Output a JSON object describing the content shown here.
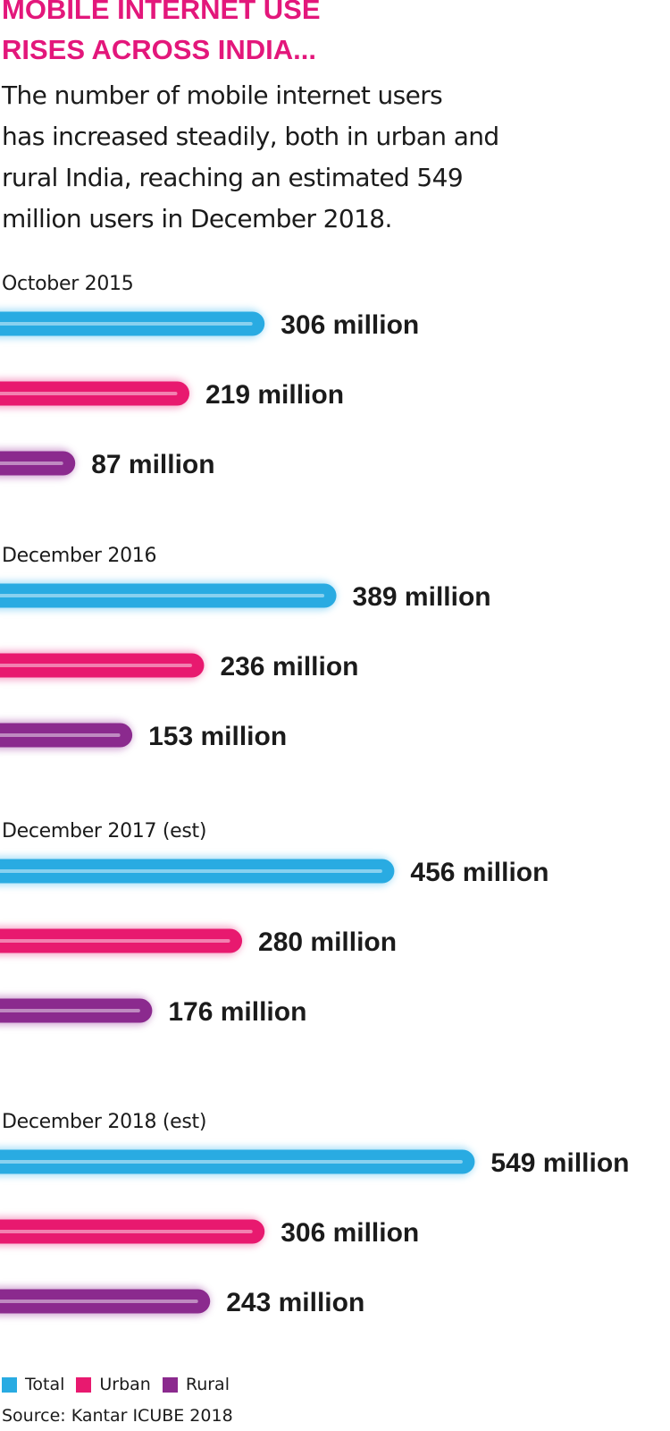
{
  "title_lines": [
    "Mobile internet use",
    "rises across India..."
  ],
  "subtitle_lines": [
    "The number of mobile internet users",
    "has increased steadily, both in urban and",
    "rural India, reaching an estimated 549",
    "million users in December 2018."
  ],
  "source": "Source: Kantar ICUBE 2018",
  "chart_data": {
    "type": "bar",
    "orientation": "horizontal",
    "unit": "million",
    "groups": [
      {
        "label": "October 2015",
        "values": [
          306,
          219,
          87
        ],
        "value_labels": [
          "306 million",
          "219 million",
          "87 million"
        ]
      },
      {
        "label": "December 2016",
        "values": [
          389,
          236,
          153
        ],
        "value_labels": [
          "389 million",
          "236 million",
          "153 million"
        ]
      },
      {
        "label": "December 2017 (est)",
        "values": [
          456,
          280,
          176
        ],
        "value_labels": [
          "456 million",
          "280 million",
          "176 million"
        ]
      },
      {
        "label": "December 2018 (est)",
        "values": [
          549,
          306,
          243
        ],
        "value_labels": [
          "549 million",
          "306 million",
          "243 million"
        ]
      }
    ],
    "series": [
      {
        "name": "Total",
        "color": "#29abe2",
        "glow": "#9fdcf7"
      },
      {
        "name": "Urban",
        "color": "#e8196f",
        "glow": "#f59cc3"
      },
      {
        "name": "Rural",
        "color": "#8b2a8e",
        "glow": "#cc9bcf"
      }
    ],
    "legend_position": "bottom-left",
    "grid": false
  }
}
